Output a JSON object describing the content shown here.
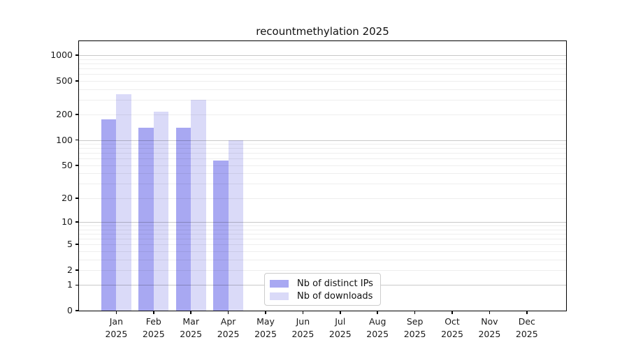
{
  "chart_data": {
    "type": "bar",
    "title": "recountmethylation 2025",
    "x_categories": [
      {
        "month": "Jan",
        "year": "2025"
      },
      {
        "month": "Feb",
        "year": "2025"
      },
      {
        "month": "Mar",
        "year": "2025"
      },
      {
        "month": "Apr",
        "year": "2025"
      },
      {
        "month": "May",
        "year": "2025"
      },
      {
        "month": "Jun",
        "year": "2025"
      },
      {
        "month": "Jul",
        "year": "2025"
      },
      {
        "month": "Aug",
        "year": "2025"
      },
      {
        "month": "Sep",
        "year": "2025"
      },
      {
        "month": "Oct",
        "year": "2025"
      },
      {
        "month": "Nov",
        "year": "2025"
      },
      {
        "month": "Dec",
        "year": "2025"
      }
    ],
    "series": [
      {
        "name": "Nb of distinct IPs",
        "color": "#a8a8f2",
        "values": [
          176,
          141,
          139,
          57,
          0,
          0,
          0,
          0,
          0,
          0,
          0,
          0
        ]
      },
      {
        "name": "Nb of downloads",
        "color": "#dadaf8",
        "values": [
          350,
          218,
          300,
          100,
          0,
          0,
          0,
          0,
          0,
          0,
          0,
          0
        ]
      }
    ],
    "y_scale": "log10(1+x)",
    "y_tick_labels": [
      "1000",
      "500",
      "200",
      "100",
      "50",
      "20",
      "10",
      "5",
      "2",
      "1",
      "0"
    ],
    "y_tick_values": [
      1000,
      500,
      200,
      100,
      50,
      20,
      10,
      5,
      2,
      1,
      0
    ],
    "ylim_top": 1460,
    "grid": "horizontal minor 1-9 per decade, major at 1/10/100/1000",
    "legend_position": "lower center inside plot",
    "grid_minor_color": "#ededed",
    "grid_major_color": "#c9c9c9"
  }
}
